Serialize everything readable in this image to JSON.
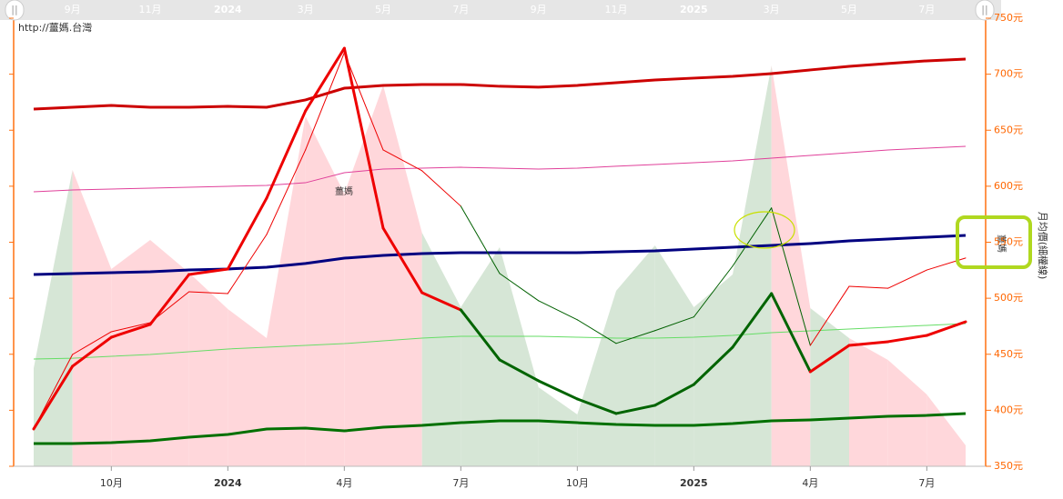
{
  "chart_data": {
    "type": "line",
    "watermark": "http://薑媽.台灣",
    "ylabel": "月均價(細權線)",
    "annotations": [
      "薑媽",
      "薑媽"
    ],
    "categories": [
      null,
      null,
      "10月",
      null,
      null,
      "2024",
      null,
      null,
      "4月",
      null,
      null,
      "7月",
      null,
      null,
      "10月",
      null,
      null,
      "2025",
      null,
      null,
      "4月",
      null,
      null,
      "7月",
      null
    ],
    "navigator_categories": [
      null,
      "9月",
      null,
      "11月",
      null,
      "2024",
      null,
      "3月",
      null,
      "5月",
      null,
      "7月",
      null,
      "9月",
      null,
      "11月",
      null,
      "2025",
      null,
      "3月",
      null,
      "5月",
      null,
      "7月",
      null
    ],
    "ylim": [
      350,
      750
    ],
    "yticks": [
      {
        "value": 350,
        "label": "350元"
      },
      {
        "value": 400,
        "label": "400元"
      },
      {
        "value": 450,
        "label": "450元"
      },
      {
        "value": 500,
        "label": "500元"
      },
      {
        "value": 550,
        "label": "550元"
      },
      {
        "value": 600,
        "label": "600元"
      },
      {
        "value": 650,
        "label": "650元"
      },
      {
        "value": 700,
        "label": "700元"
      },
      {
        "value": 750,
        "label": "750元"
      }
    ],
    "area": {
      "values": [
        437.6,
        614.5,
        526.1,
        552,
        522.8,
        490.4,
        464.4,
        662.4,
        593.4,
        690,
        558.5,
        492,
        545.5,
        420.6,
        396.2,
        506.6,
        547.2,
        492,
        521.2,
        707.8,
        491.2,
        464.4,
        444.9,
        414.1,
        368.7
      ],
      "segment_colors": [
        "#d6e6d6",
        "#ffd7db",
        "#ffd7db",
        "#ffd7db",
        "#ffd7db",
        "#ffd7db",
        "#ffd7db",
        "#ffd7db",
        "#ffd7db",
        "#ffd7db",
        "#d6e6d6",
        "#d6e6d6",
        "#d6e6d6",
        "#d6e6d6",
        "#d6e6d6",
        "#d6e6d6",
        "#d6e6d6",
        "#d6e6d6",
        "#d6e6d6",
        "#ffd7db",
        "#d6e6d6",
        "#ffd7db",
        "#ffd7db",
        "#ffd7db"
      ]
    },
    "series": [
      {
        "color": "#007000",
        "width": 3,
        "values": [
          370.3,
          370.3,
          371.1,
          372.7,
          376,
          378.4,
          383.3,
          384.1,
          381.6,
          384.9,
          386.5,
          388.9,
          390.6,
          390.6,
          388.9,
          387.3,
          386.5,
          386.5,
          388.1,
          390.6,
          391.4,
          393,
          394.6,
          395.4,
          397.1
        ]
      },
      {
        "color": "#66dd66",
        "width": 1,
        "values": [
          445.7,
          446.5,
          448.2,
          449.8,
          452.2,
          454.7,
          456.3,
          457.9,
          459.5,
          462,
          464.4,
          466,
          466,
          466,
          465.2,
          464.4,
          464.4,
          465.2,
          466.8,
          469.3,
          470.9,
          472.5,
          474.1,
          475.8,
          477.4
        ]
      },
      {
        "color": "#000080",
        "width": 3,
        "values": [
          521.2,
          522,
          522.8,
          523.6,
          525.3,
          526.1,
          527.7,
          531,
          535.8,
          538.2,
          539.9,
          540.7,
          540.7,
          540.7,
          540.7,
          541.5,
          542.3,
          543.9,
          545.5,
          547.2,
          548.8,
          551.2,
          552.8,
          554.5,
          556.1
        ]
      },
      {
        "color": "#e0409a",
        "width": 1,
        "values": [
          595,
          596.7,
          597.5,
          598.3,
          599.1,
          599.9,
          600.7,
          603.1,
          612.1,
          615.3,
          616.1,
          616.9,
          616.1,
          615.3,
          616.1,
          617.8,
          619.4,
          621,
          622.6,
          625.1,
          627.5,
          629.9,
          632.4,
          634,
          635.6
        ]
      },
      {
        "color": "#cc0000",
        "width": 3,
        "values": [
          668.9,
          670.5,
          672.1,
          670.5,
          670.5,
          671.3,
          670.5,
          677,
          687.5,
          690,
          690.8,
          690.8,
          689.2,
          688.4,
          690,
          692.4,
          694.8,
          696.5,
          698.1,
          700.5,
          703.8,
          707,
          709.5,
          711.9,
          713.5
        ]
      },
      {
        "color": "#ee0000",
        "width": 1,
        "values": [
          383.3,
          449.8,
          470.1,
          478.2,
          505.8,
          504.2,
          556.9,
          632.4,
          719.2,
          632.4,
          613.8,
          582.2,
          522.1,
          497.8,
          480.8,
          459.7,
          471.1,
          483.3,
          528.7,
          580.6,
          457.9,
          510.6,
          508.9,
          525.2,
          535.9
        ],
        "segment_colors": [
          "#ee0000",
          "#ee0000",
          "#ee0000",
          "#ee0000",
          "#ee0000",
          "#ee0000",
          "#ee0000",
          "#ee0000",
          "#ee0000",
          "#ee0000",
          "#ee0000",
          "#006000",
          "#006000",
          "#006000",
          "#006000",
          "#006000",
          "#006000",
          "#006000",
          "#006000",
          "#006000",
          "#ee0000",
          "#ee0000",
          "#ee0000",
          "#ee0000"
        ]
      },
      {
        "color": "#ee0000",
        "width": 3,
        "values": [
          383.3,
          439.3,
          465.2,
          476.6,
          521.2,
          526.1,
          589.4,
          667.2,
          723.2,
          562.6,
          505,
          489.6,
          445,
          426.3,
          410.1,
          397.1,
          404.4,
          423,
          456.3,
          504.2,
          434.4,
          457.9,
          461.2,
          466.8,
          479
        ],
        "segment_colors": [
          "#ee0000",
          "#ee0000",
          "#ee0000",
          "#ee0000",
          "#ee0000",
          "#ee0000",
          "#ee0000",
          "#ee0000",
          "#ee0000",
          "#ee0000",
          "#ee0000",
          "#006400",
          "#006400",
          "#006400",
          "#006400",
          "#006400",
          "#006400",
          "#006400",
          "#006400",
          "#006400",
          "#ee0000",
          "#ee0000",
          "#ee0000",
          "#ee0000"
        ]
      }
    ]
  }
}
